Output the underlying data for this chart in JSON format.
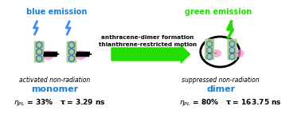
{
  "bg_color": "#ffffff",
  "blue_emission_text": "blue emission",
  "blue_emission_color": "#1a7fd4",
  "green_emission_text": "green emission",
  "green_emission_color": "#22dd00",
  "arrow_center_text1": "anthracene-dimer formation",
  "arrow_center_text2": "thianthrene-restricted motion",
  "arrow_color": "#22dd00",
  "left_italic_text": "activated non-radiation",
  "right_italic_text": "suppressed non-radiation",
  "monomer_text": "monomer",
  "monomer_color": "#1a7fd4",
  "dimer_text": "dimer",
  "dimer_color": "#1a7fd4",
  "monomer_formula": "ηₚₗ = 33%   τ = 3.29 ns",
  "dimer_formula": "ηₚₗ = 80%   τ = 163.75 ns",
  "formula_color": "#000000",
  "molecule_green": "#a8d08d",
  "molecule_blue_ring": "#4472c4",
  "molecule_pink": "#ff88cc",
  "molecule_black": "#000000"
}
